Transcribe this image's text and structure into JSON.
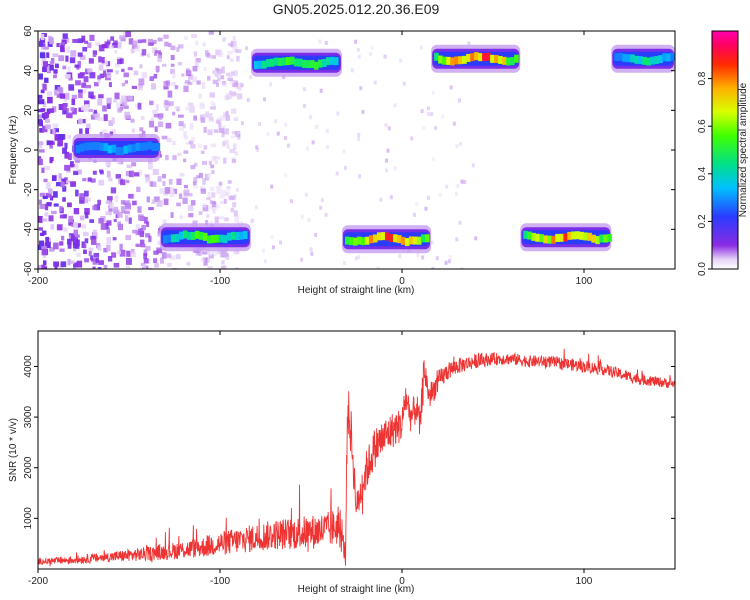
{
  "title": "GN05.2025.012.20.36.E09",
  "colors": {
    "signal": "#ee3333",
    "axis": "#000000",
    "text": "#222222",
    "background": "#ffffff"
  },
  "chart_data": [
    {
      "type": "heatmap",
      "xlabel": "Height of straight line (km)",
      "ylabel": "Frequency (Hz)",
      "xlim": [
        -200,
        150
      ],
      "ylim": [
        -60,
        60
      ],
      "xticks": [
        -200,
        -100,
        0,
        100
      ],
      "yticks": [
        -60,
        -40,
        -20,
        0,
        20,
        40,
        60
      ],
      "colorbar": {
        "label": "Normalized spectral amplitude",
        "range": [
          0.0,
          1.0
        ],
        "ticks": [
          0.0,
          0.2,
          0.4,
          0.6,
          0.8
        ],
        "colormap": "rainbow (violet→blue→cyan→green→yellow→red→magenta)"
      },
      "noise_region": {
        "x_range": [
          -200,
          -95
        ],
        "description": "sparse low-amplitude speckle"
      },
      "segments": [
        {
          "x_start": -181,
          "x_end": -133,
          "freq": 1,
          "peak": 0.35
        },
        {
          "x_start": -133,
          "x_end": -83,
          "freq": -44,
          "peak": 0.55
        },
        {
          "x_start": -83,
          "x_end": -33,
          "freq": 44,
          "peak": 0.6
        },
        {
          "x_start": -33,
          "x_end": 16,
          "freq": -45,
          "peak": 0.85
        },
        {
          "x_start": 16,
          "x_end": 65,
          "freq": 46,
          "peak": 0.9
        },
        {
          "x_start": 65,
          "x_end": 115,
          "freq": -44,
          "peak": 0.85
        },
        {
          "x_start": 115,
          "x_end": 150,
          "freq": 46,
          "peak": 0.45
        }
      ]
    },
    {
      "type": "line",
      "xlabel": "Height of straight line (km)",
      "ylabel": "SNR (10 * v/v)",
      "xlim": [
        -200,
        150
      ],
      "ylim": [
        0,
        4700
      ],
      "xticks": [
        -200,
        -100,
        0,
        100
      ],
      "yticks": [
        1000,
        2000,
        3000,
        4000
      ],
      "series": [
        {
          "color": "#ee3333",
          "x": [
            -200,
            -190,
            -180,
            -170,
            -160,
            -150,
            -140,
            -130,
            -120,
            -110,
            -100,
            -90,
            -80,
            -70,
            -60,
            -50,
            -40,
            -35,
            -31,
            -30,
            -28,
            -25,
            -20,
            -15,
            -10,
            -5,
            0,
            2,
            5,
            8,
            10,
            12,
            15,
            20,
            25,
            30,
            35,
            40,
            50,
            60,
            70,
            80,
            90,
            100,
            110,
            120,
            130,
            140,
            150
          ],
          "y": [
            150,
            160,
            180,
            210,
            240,
            270,
            300,
            340,
            380,
            430,
            500,
            560,
            620,
            680,
            700,
            730,
            780,
            850,
            300,
            3200,
            2700,
            1200,
            1900,
            2400,
            2600,
            2750,
            2850,
            3400,
            3000,
            3200,
            2800,
            4000,
            3400,
            3700,
            3900,
            4000,
            4050,
            4100,
            4150,
            4150,
            4100,
            4100,
            4050,
            4000,
            3950,
            3850,
            3750,
            3700,
            3650
          ],
          "noise_amplitude": [
            60,
            70,
            80,
            90,
            100,
            120,
            140,
            160,
            180,
            200,
            240,
            260,
            280,
            300,
            320,
            340,
            360,
            380,
            200,
            500,
            500,
            300,
            400,
            400,
            380,
            360,
            340,
            330,
            320,
            320,
            320,
            300,
            260,
            220,
            180,
            160,
            150,
            140,
            120,
            120,
            120,
            120,
            120,
            120,
            120,
            110,
            110,
            100,
            100
          ]
        }
      ]
    }
  ]
}
